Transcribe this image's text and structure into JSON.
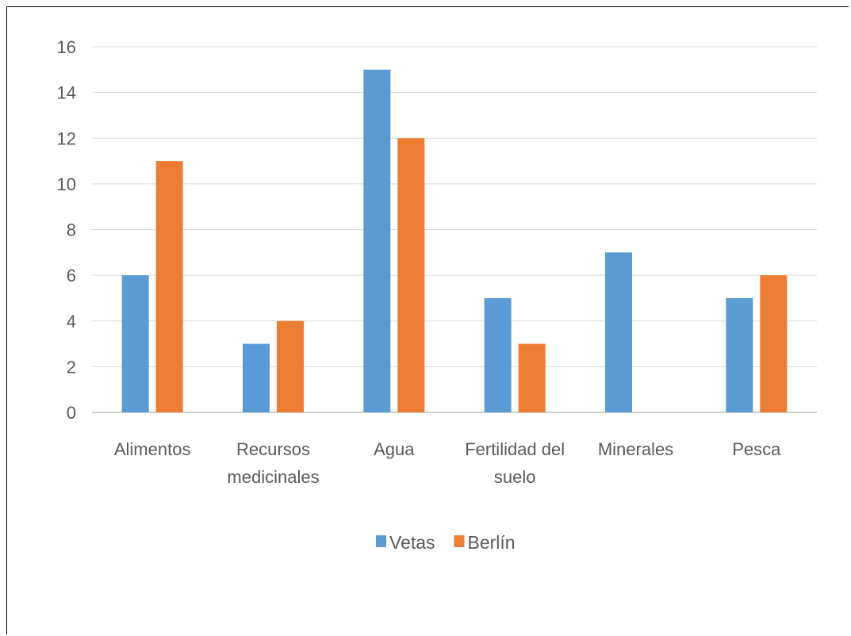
{
  "chart_data": {
    "type": "bar",
    "categories": [
      [
        "Alimentos"
      ],
      [
        "Recursos",
        "medicinales"
      ],
      [
        "Agua"
      ],
      [
        "Fertilidad del",
        "suelo"
      ],
      [
        "Minerales"
      ],
      [
        "Pesca"
      ]
    ],
    "series": [
      {
        "name": "Vetas",
        "color": "#5b9bd5",
        "values": [
          6,
          3,
          15,
          5,
          7,
          5
        ]
      },
      {
        "name": "Berlín",
        "color": "#ed7d31",
        "values": [
          11,
          4,
          12,
          3,
          0,
          6
        ]
      }
    ],
    "ylim": [
      0,
      16
    ],
    "yticks": [
      "0",
      "2",
      "4",
      "6",
      "8",
      "10",
      "12",
      "14",
      "16"
    ],
    "grid": true,
    "legend_position": "bottom"
  }
}
